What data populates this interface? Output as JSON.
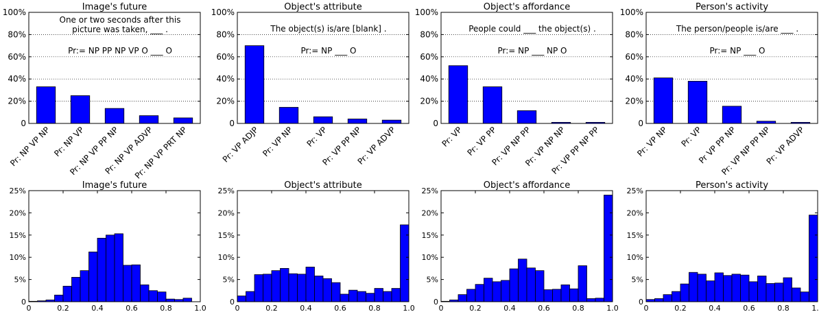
{
  "chart_data": [
    {
      "type": "bar",
      "title": "Image's future",
      "annotation_lines": [
        "One or two seconds after this",
        "picture was taken, ___ ."
      ],
      "pattern": "Pr:= NP PP NP VP O ___ O",
      "categories": [
        "Pr: NP VP NP",
        "Pr: NP VP",
        "Pr: NP VP PP NP",
        "Pr: NP VP ADVP",
        "Pr: NP VP PRT NP"
      ],
      "values": [
        0.33,
        0.25,
        0.135,
        0.07,
        0.05
      ],
      "yticks": [
        "0",
        "20%",
        "40%",
        "60%",
        "80%",
        "100%"
      ],
      "ylim": [
        0,
        1
      ],
      "grid": true,
      "bar_color": "#0000ff"
    },
    {
      "type": "bar",
      "title": "Object's attribute",
      "annotation_lines": [
        "The object(s) is/are [blank] ."
      ],
      "pattern": "Pr:= NP ___ O",
      "categories": [
        "Pr: VP ADJP",
        "Pr: VP NP",
        "Pr: VP",
        "Pr: VP PP NP",
        "Pr: VP ADVP"
      ],
      "values": [
        0.7,
        0.145,
        0.06,
        0.04,
        0.03
      ],
      "yticks": [
        "0",
        "20%",
        "40%",
        "60%",
        "80%",
        "100%"
      ],
      "ylim": [
        0,
        1
      ],
      "grid": true,
      "bar_color": "#0000ff"
    },
    {
      "type": "bar",
      "title": "Object's affordance",
      "annotation_lines": [
        "People could ___ the object(s) ."
      ],
      "pattern": "Pr:= NP ___ NP O",
      "categories": [
        "Pr: VP",
        "Pr: VP PP",
        "Pr: VP NP PP",
        "Pr: VP NP NP",
        "Pr: VP PP NP PP"
      ],
      "values": [
        0.52,
        0.33,
        0.115,
        0.01,
        0.01
      ],
      "yticks": [
        "0",
        "20%",
        "40%",
        "60%",
        "80%",
        "100%"
      ],
      "ylim": [
        0,
        1
      ],
      "grid": true,
      "bar_color": "#0000ff"
    },
    {
      "type": "bar",
      "title": "Person's activity",
      "annotation_lines": [
        "The person/people is/are ___ ."
      ],
      "pattern": "Pr:= NP ___ O",
      "categories": [
        "Pr: VP NP",
        "Pr: VP",
        "Pr VP PP NP",
        "Pr: VP NP PP NP",
        "Pr: VP ADVP"
      ],
      "values": [
        0.41,
        0.38,
        0.155,
        0.02,
        0.01
      ],
      "yticks": [
        "0",
        "20%",
        "40%",
        "60%",
        "80%",
        "100%"
      ],
      "ylim": [
        0,
        1
      ],
      "grid": true,
      "bar_color": "#0000ff"
    },
    {
      "type": "bar",
      "title": "Image's future",
      "bins": 20,
      "xlim": [
        0,
        1
      ],
      "values": [
        0.1,
        0.2,
        0.4,
        1.5,
        3.5,
        5.5,
        7.0,
        11.2,
        14.3,
        15.0,
        15.3,
        8.2,
        8.3,
        3.8,
        2.5,
        2.2,
        0.6,
        0.5,
        0.8,
        0.0
      ],
      "ylim": [
        0,
        25
      ],
      "yticks": [
        "0",
        "5%",
        "10%",
        "15%",
        "20%",
        "25%"
      ],
      "xticks": [
        "0",
        "0.2",
        "0.4",
        "0.6",
        "0.8",
        "1.0"
      ],
      "bar_color": "#0000ff"
    },
    {
      "type": "bar",
      "title": "Object's attribute",
      "bins": 20,
      "xlim": [
        0,
        1
      ],
      "values": [
        1.3,
        2.3,
        6.1,
        6.2,
        7.0,
        7.5,
        6.3,
        6.2,
        7.8,
        5.8,
        5.2,
        4.3,
        1.7,
        2.6,
        2.3,
        1.9,
        3.0,
        2.3,
        3.0,
        17.3
      ],
      "ylim": [
        0,
        25
      ],
      "yticks": [
        "0",
        "5%",
        "10%",
        "15%",
        "20%",
        "25%"
      ],
      "xticks": [
        "0",
        "0.2",
        "0.4",
        "0.6",
        "0.8",
        "1.0"
      ],
      "bar_color": "#0000ff"
    },
    {
      "type": "bar",
      "title": "Object's affordance",
      "bins": 20,
      "xlim": [
        0,
        1
      ],
      "values": [
        0.1,
        0.4,
        1.6,
        2.8,
        3.9,
        5.3,
        4.5,
        4.8,
        7.4,
        9.6,
        7.6,
        7.0,
        2.7,
        2.8,
        3.8,
        2.9,
        8.1,
        0.7,
        0.8,
        24.0
      ],
      "ylim": [
        0,
        25
      ],
      "yticks": [
        "0",
        "5%",
        "10%",
        "15%",
        "20%",
        "25%"
      ],
      "xticks": [
        "0",
        "0.2",
        "0.4",
        "0.6",
        "0.8",
        "1.0"
      ],
      "bar_color": "#0000ff"
    },
    {
      "type": "bar",
      "title": "Person's activity",
      "bins": 20,
      "xlim": [
        0,
        1
      ],
      "values": [
        0.5,
        0.7,
        1.6,
        2.3,
        4.0,
        6.6,
        6.2,
        4.7,
        6.5,
        5.9,
        6.2,
        6.0,
        4.5,
        5.8,
        4.1,
        4.2,
        5.4,
        3.1,
        2.2,
        19.5
      ],
      "ylim": [
        0,
        25
      ],
      "yticks": [
        "0",
        "5%",
        "10%",
        "15%",
        "20%",
        "25%"
      ],
      "xticks": [
        "0",
        "0.2",
        "0.4",
        "0.6",
        "0.8",
        "1.0"
      ],
      "bar_color": "#0000ff"
    }
  ]
}
